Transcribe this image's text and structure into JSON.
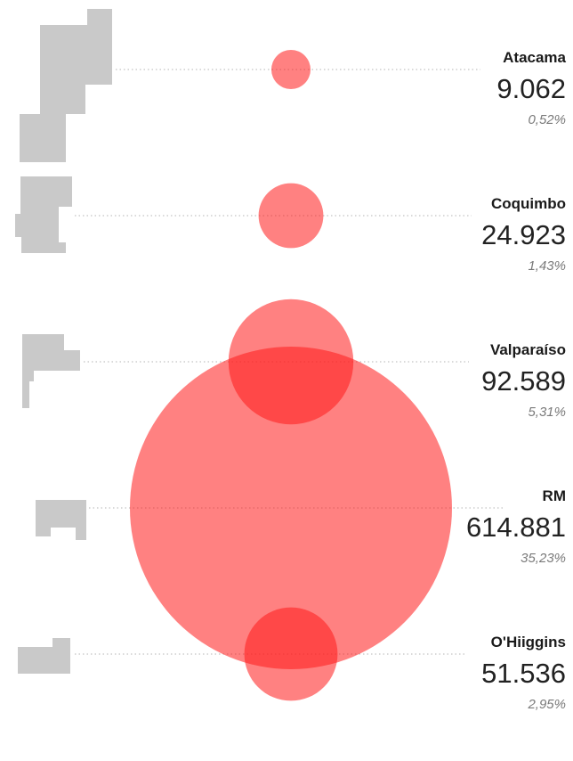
{
  "chart_data": {
    "type": "bubble",
    "series": [
      {
        "region": "Atacama",
        "value": "9.062",
        "share": "0,52%",
        "number": 9062,
        "percent": 0.52
      },
      {
        "region": "Coquimbo",
        "value": "24.923",
        "share": "1,43%",
        "number": 24923,
        "percent": 1.43
      },
      {
        "region": "Valparaíso",
        "value": "92.589",
        "share": "5,31%",
        "number": 92589,
        "percent": 5.31
      },
      {
        "region": "RM",
        "value": "614.881",
        "share": "35,23%",
        "number": 614881,
        "percent": 35.23
      },
      {
        "region": "O'Hiiggins",
        "value": "51.536",
        "share": "2,95%",
        "number": 51536,
        "percent": 2.95
      }
    ],
    "bubble_color": "#ff1a1a"
  }
}
